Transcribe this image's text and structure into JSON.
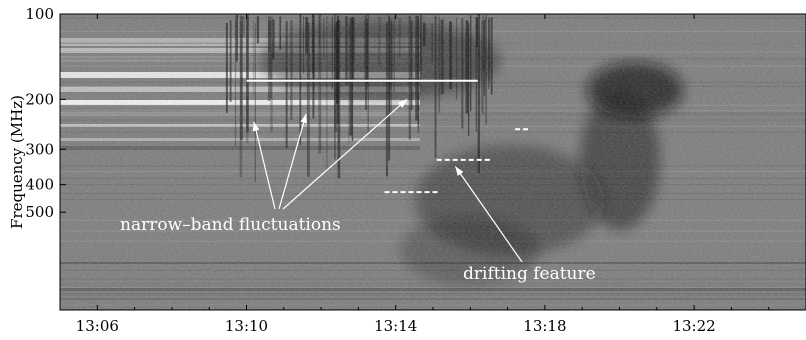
{
  "chart_data": {
    "type": "heatmap",
    "title": "",
    "ylabel": "Frequency (MHz)",
    "xlabel": "",
    "colormap": "grayscale",
    "x_ticks": [
      "13:06",
      "13:10",
      "13:14",
      "13:18",
      "13:22"
    ],
    "x_tick_minutes": [
      366,
      370,
      374,
      378,
      382
    ],
    "x_range_minutes": [
      365.0,
      385.0
    ],
    "y_ticks": [
      100,
      200,
      300,
      400,
      500
    ],
    "y_range": [
      100,
      560
    ],
    "annotations": {
      "narrow_band": {
        "label": "narrow–band fluctuations",
        "targets": [
          {
            "time_min": 370.2,
            "freq": 240
          },
          {
            "time_min": 371.6,
            "freq": 225
          },
          {
            "time_min": 374.3,
            "freq": 200
          }
        ]
      },
      "drifting": {
        "label": "drifting feature",
        "target": {
          "time_min": 375.6,
          "freq": 345
        }
      }
    },
    "marker_lines": [
      {
        "style": "solid",
        "color": "#ffffff",
        "freq": 172,
        "t_start": 370.0,
        "t_end": 376.2
      },
      {
        "style": "dashed",
        "color": "#ffffff",
        "freq": 255,
        "t_start": 377.2,
        "t_end": 377.6
      },
      {
        "style": "dashed",
        "color": "#ffffff",
        "freq": 327,
        "t_start": 375.1,
        "t_end": 376.6
      },
      {
        "style": "dashed",
        "color": "#ffffff",
        "freq": 425,
        "t_start": 373.7,
        "t_end": 375.2
      }
    ]
  }
}
